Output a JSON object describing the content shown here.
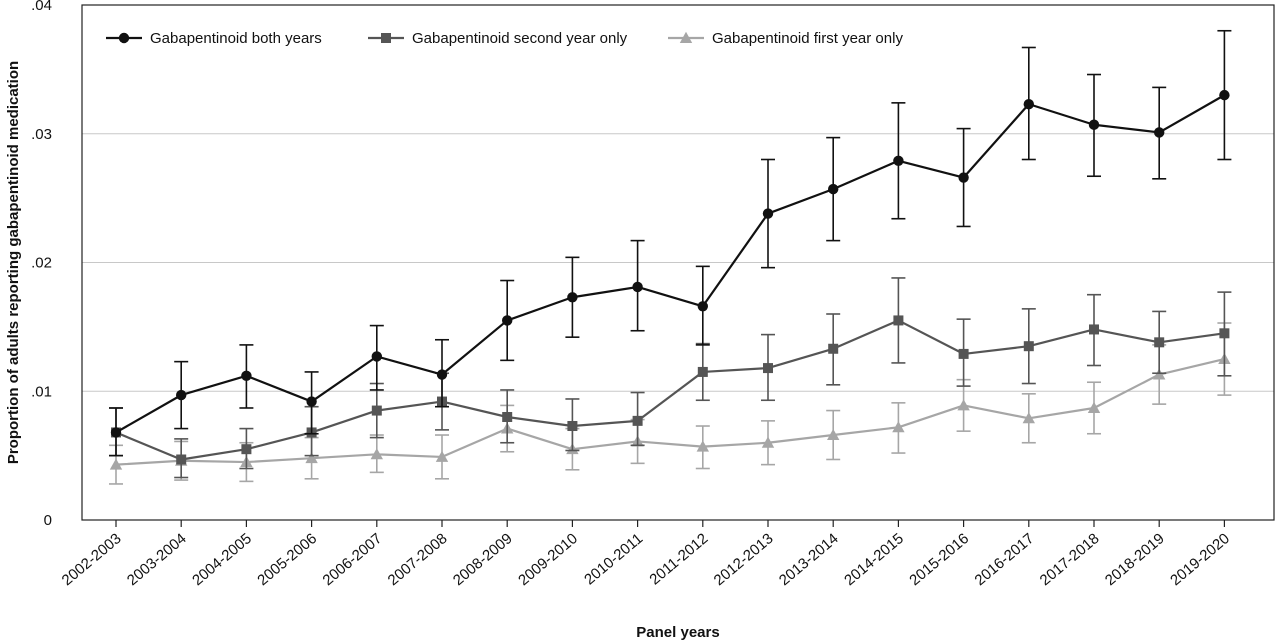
{
  "chart_data": {
    "type": "line",
    "title": "",
    "xlabel": "Panel years",
    "ylabel": "Proportion of adults reporting gabapentinoid medication",
    "categories": [
      "2002-2003",
      "2003-2004",
      "2004-2005",
      "2005-2006",
      "2006-2007",
      "2007-2008",
      "2008-2009",
      "2009-2010",
      "2010-2011",
      "2011-2012",
      "2012-2013",
      "2013-2014",
      "2014-2015",
      "2015-2016",
      "2016-2017",
      "2017-2018",
      "2018-2019",
      "2019-2020"
    ],
    "ylim": [
      0,
      0.04
    ],
    "yticks": [
      0,
      0.01,
      0.02,
      0.03,
      0.04
    ],
    "ytick_labels": [
      "0",
      ".01",
      ".02",
      ".03",
      ".04"
    ],
    "grid": "horizontal",
    "legend_position": "top-left",
    "series": [
      {
        "name": "Gabapentinoid both years",
        "marker": "circle",
        "color": "#111111",
        "values": [
          0.0068,
          0.0097,
          0.0112,
          0.0092,
          0.0127,
          0.0113,
          0.0155,
          0.0173,
          0.0181,
          0.0166,
          0.0238,
          0.0257,
          0.0279,
          0.0266,
          0.0323,
          0.0307,
          0.0301,
          0.033
        ],
        "lower": [
          0.005,
          0.0071,
          0.0087,
          0.0067,
          0.0101,
          0.0088,
          0.0124,
          0.0142,
          0.0147,
          0.0136,
          0.0196,
          0.0217,
          0.0234,
          0.0228,
          0.028,
          0.0267,
          0.0265,
          0.028
        ],
        "upper": [
          0.0087,
          0.0123,
          0.0136,
          0.0115,
          0.0151,
          0.014,
          0.0186,
          0.0204,
          0.0217,
          0.0197,
          0.028,
          0.0297,
          0.0324,
          0.0304,
          0.0367,
          0.0346,
          0.0336,
          0.038
        ]
      },
      {
        "name": "Gabapentinoid second year only",
        "marker": "square",
        "color": "#555555",
        "values": [
          0.0068,
          0.0047,
          0.0055,
          0.0068,
          0.0085,
          0.0092,
          0.008,
          0.0073,
          0.0077,
          0.0115,
          0.0118,
          0.0133,
          0.0155,
          0.0129,
          0.0135,
          0.0148,
          0.0138,
          0.0145
        ],
        "lower": [
          0.005,
          0.0033,
          0.004,
          0.005,
          0.0064,
          0.007,
          0.006,
          0.0054,
          0.0058,
          0.0093,
          0.0093,
          0.0105,
          0.0122,
          0.0104,
          0.0106,
          0.012,
          0.0114,
          0.0112
        ],
        "upper": [
          0.0087,
          0.0063,
          0.0071,
          0.0088,
          0.0106,
          0.0114,
          0.0101,
          0.0094,
          0.0099,
          0.0137,
          0.0144,
          0.016,
          0.0188,
          0.0156,
          0.0164,
          0.0175,
          0.0162,
          0.0177
        ]
      },
      {
        "name": "Gabapentinoid first year only",
        "marker": "triangle",
        "color": "#a6a6a6",
        "values": [
          0.0043,
          0.0046,
          0.0045,
          0.0048,
          0.0051,
          0.0049,
          0.0071,
          0.0055,
          0.0061,
          0.0057,
          0.006,
          0.0066,
          0.0072,
          0.0089,
          0.0079,
          0.0087,
          0.0113,
          0.0125
        ],
        "lower": [
          0.0028,
          0.0031,
          0.003,
          0.0032,
          0.0037,
          0.0032,
          0.0053,
          0.0039,
          0.0044,
          0.004,
          0.0043,
          0.0047,
          0.0052,
          0.0069,
          0.006,
          0.0067,
          0.009,
          0.0097
        ],
        "upper": [
          0.0058,
          0.0061,
          0.006,
          0.0064,
          0.0066,
          0.0066,
          0.0089,
          0.0071,
          0.0078,
          0.0073,
          0.0077,
          0.0085,
          0.0091,
          0.0109,
          0.0098,
          0.0107,
          0.0136,
          0.0153
        ]
      }
    ]
  }
}
